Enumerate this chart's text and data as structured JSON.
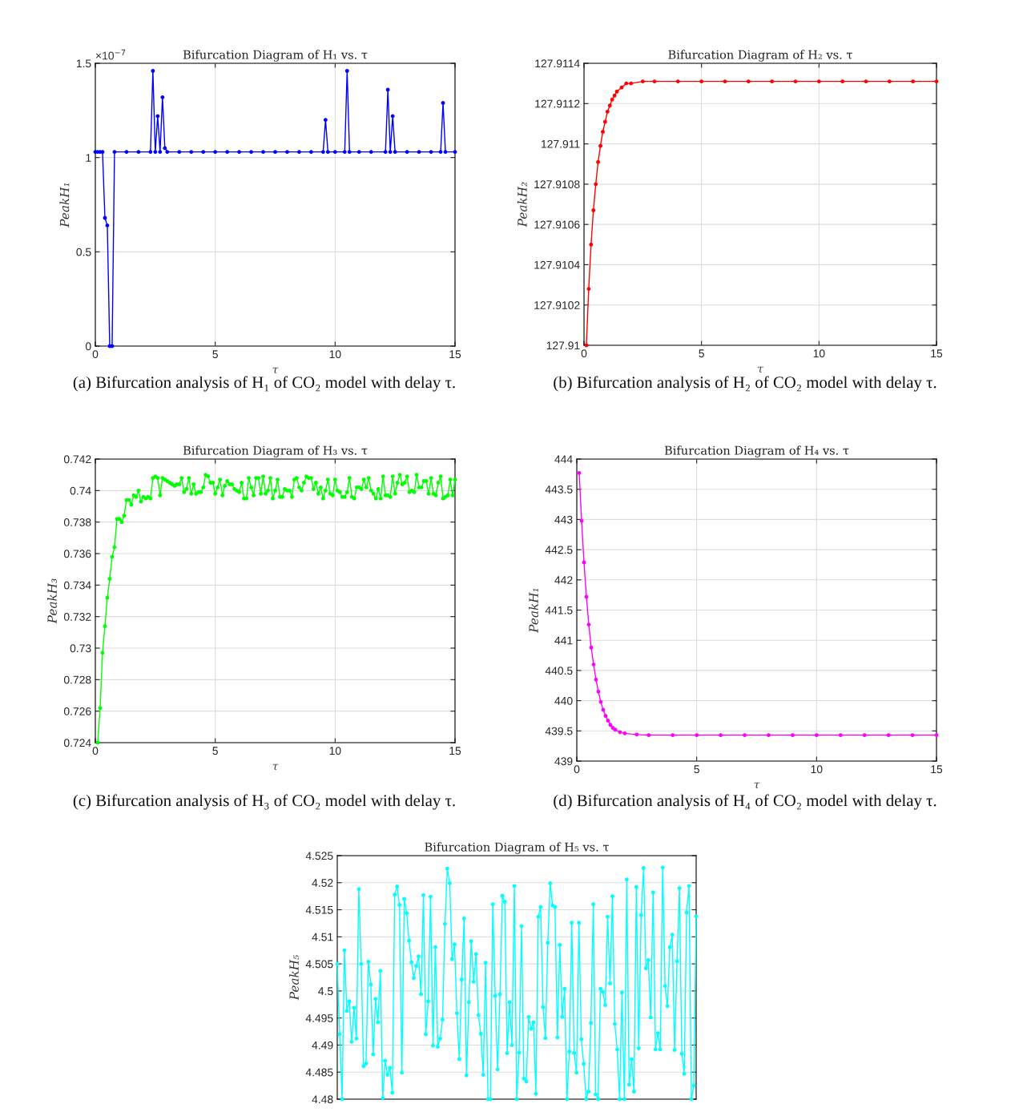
{
  "chart_data": [
    {
      "type": "line",
      "title": "Bifurcation Diagram of H₁ vs. τ",
      "xlabel": "τ",
      "ylabel": "PeakH₁",
      "annotations": [
        "×10$^{−7}$",
        "(a) Bifurcation analysis of H₁ of CO₂ model with delay τ."
      ],
      "x": [
        0,
        0.1,
        0.2,
        0.3,
        0.4,
        0.5,
        0.6,
        0.7,
        0.8,
        1.3,
        1.8,
        2.3,
        2.4,
        2.5,
        2.6,
        2.7,
        2.8,
        2.9,
        3.0,
        3.5,
        4.0,
        4.5,
        5.0,
        5.5,
        6.0,
        6.5,
        7.0,
        7.5,
        8.0,
        8.5,
        9.0,
        9.5,
        9.6,
        9.7,
        10.0,
        10.4,
        10.5,
        10.6,
        11.0,
        11.5,
        12.1,
        12.2,
        12.3,
        12.4,
        12.5,
        13.0,
        13.5,
        14.0,
        14.4,
        14.5,
        14.6,
        15.0
      ],
      "series": [
        {
          "color": "#0000ff",
          "values": [
            1.03,
            1.03,
            1.03,
            1.03,
            0.68,
            0.64,
            0,
            0,
            1.03,
            1.03,
            1.03,
            1.03,
            1.46,
            1.03,
            1.22,
            1.03,
            1.32,
            1.05,
            1.03,
            1.03,
            1.03,
            1.03,
            1.03,
            1.03,
            1.03,
            1.03,
            1.03,
            1.03,
            1.03,
            1.03,
            1.03,
            1.03,
            1.2,
            1.03,
            1.03,
            1.03,
            1.46,
            1.03,
            1.03,
            1.03,
            1.03,
            1.36,
            1.03,
            1.22,
            1.03,
            1.03,
            1.03,
            1.03,
            1.03,
            1.29,
            1.03,
            1.03
          ]
        }
      ],
      "xlim": [
        0,
        15
      ],
      "ylim": [
        0,
        1.5
      ],
      "xticks": [
        0,
        5,
        10,
        15
      ],
      "yticks": [
        0,
        0.5,
        1,
        1.5
      ],
      "grid": true,
      "marker": "circle",
      "line_style": "solid"
    },
    {
      "type": "line",
      "title": "Bifurcation Diagram of H₂ vs. τ",
      "xlabel": "τ",
      "ylabel": "PeakH₂",
      "annotations": [
        "(b) Bifurcation analysis of H₂ of CO₂ model with delay τ."
      ],
      "x": [
        0.1,
        0.2,
        0.3,
        0.4,
        0.5,
        0.6,
        0.7,
        0.8,
        0.9,
        1.0,
        1.1,
        1.2,
        1.3,
        1.4,
        1.6,
        1.8,
        2.0,
        2.5,
        3,
        4,
        5,
        6,
        7,
        8,
        9,
        10,
        11,
        12,
        13,
        14,
        15
      ],
      "series": [
        {
          "color": "#ff0000",
          "values": [
            127.91,
            127.91028,
            127.9105,
            127.91067,
            127.9108,
            127.91091,
            127.91099,
            127.91106,
            127.91111,
            127.91116,
            127.91119,
            127.91122,
            127.91124,
            127.91126,
            127.91128,
            127.9113,
            127.9113,
            127.91131,
            127.91131,
            127.91131,
            127.91131,
            127.91131,
            127.91131,
            127.91131,
            127.91131,
            127.91131,
            127.91131,
            127.91131,
            127.91131,
            127.91131,
            127.91131
          ]
        }
      ],
      "xlim": [
        0,
        15
      ],
      "ylim": [
        127.91,
        127.9114
      ],
      "xticks": [
        0,
        5,
        10,
        15
      ],
      "yticks": [
        127.91,
        127.9102,
        127.9104,
        127.9106,
        127.9108,
        127.911,
        127.9112,
        127.9114
      ],
      "grid": true,
      "marker": "circle",
      "line_style": "solid"
    },
    {
      "type": "line",
      "title": "Bifurcation Diagram of H₃ vs. τ",
      "xlabel": "τ",
      "ylabel": "PeakH₃",
      "annotations": [
        "(c) Bifurcation analysis of H₃ of CO₂ model with delay τ."
      ],
      "x": [
        0.1,
        0.2,
        0.3,
        0.4,
        0.5,
        0.6,
        0.7,
        0.8,
        0.9,
        1.0,
        1.1,
        1.2,
        1.3,
        1.4,
        1.5,
        1.6,
        1.7,
        1.8,
        1.9,
        2.0,
        2.1,
        2.2,
        2.3,
        2.4,
        2.5,
        2.6,
        2.7,
        2.8,
        2.9,
        3.0,
        3.1,
        3.2,
        3.3,
        3.4,
        3.5,
        3.6,
        3.7,
        3.8,
        3.9,
        4.0,
        4.1,
        4.2,
        4.3,
        4.4,
        4.5,
        4.6,
        4.7,
        4.8,
        4.9,
        5.0,
        5.1,
        5.2,
        5.3,
        5.4,
        5.5,
        5.6,
        5.7,
        5.8,
        5.9,
        6.0,
        6.1,
        6.2,
        6.3,
        6.4,
        6.5,
        6.6,
        6.7,
        6.8,
        6.9,
        7.0,
        7.1,
        7.2,
        7.3,
        7.4,
        7.5,
        7.6,
        7.7,
        7.8,
        7.9,
        8.0,
        8.1,
        8.2,
        8.3,
        8.4,
        8.5,
        8.6,
        8.7,
        8.8,
        8.9,
        9.0,
        9.1,
        9.2,
        9.3,
        9.4,
        9.5,
        9.6,
        9.7,
        9.8,
        9.9,
        10.0,
        10.1,
        10.2,
        10.3,
        10.4,
        10.5,
        10.6,
        10.7,
        10.8,
        10.9,
        11.0,
        11.1,
        11.2,
        11.3,
        11.4,
        11.5,
        11.6,
        11.7,
        11.8,
        11.9,
        12.0,
        12.1,
        12.2,
        12.3,
        12.4,
        12.5,
        12.6,
        12.7,
        12.8,
        12.9,
        13.0,
        13.1,
        13.2,
        13.3,
        13.4,
        13.5,
        13.6,
        13.7,
        13.8,
        13.9,
        14.0,
        14.1,
        14.2,
        14.3,
        14.4,
        14.5,
        14.6,
        14.7,
        14.8,
        14.9,
        15.0
      ],
      "series": [
        {
          "color": "#00ff00",
          "values": [
            0.724,
            0.7262,
            0.7297,
            0.7314,
            0.7332,
            0.7344,
            0.7358,
            0.7364,
            0.7382,
            0.7382,
            0.738,
            0.7384,
            0.7394,
            0.7394,
            0.7391,
            0.7397,
            0.7396,
            0.74,
            0.7393,
            0.7396,
            0.7395,
            0.7396,
            0.7395,
            0.7408,
            0.7409,
            0.7408,
            0.7397,
            0.7408,
            0.7407,
            0.7406,
            0.7405,
            0.7404,
            0.7403,
            0.7404,
            0.7404,
            0.7408,
            0.7399,
            0.7401,
            0.7408,
            0.7398,
            0.7404,
            0.7398,
            0.7399,
            0.7399,
            0.7402,
            0.741,
            0.7409,
            0.7405,
            0.7405,
            0.7398,
            0.7402,
            0.7407,
            0.7397,
            0.7403,
            0.7406,
            0.7404,
            0.7404,
            0.7401,
            0.74,
            0.7399,
            0.7405,
            0.7395,
            0.7395,
            0.7408,
            0.7402,
            0.7397,
            0.7408,
            0.7408,
            0.7398,
            0.7409,
            0.7398,
            0.74,
            0.7408,
            0.7395,
            0.74,
            0.7407,
            0.7396,
            0.7396,
            0.7401,
            0.74,
            0.74,
            0.7396,
            0.7407,
            0.7408,
            0.7402,
            0.74,
            0.7405,
            0.7409,
            0.7408,
            0.7408,
            0.7401,
            0.7405,
            0.7398,
            0.7402,
            0.7395,
            0.74,
            0.7407,
            0.7398,
            0.7397,
            0.7407,
            0.74,
            0.7399,
            0.7396,
            0.7396,
            0.7399,
            0.7408,
            0.7396,
            0.7395,
            0.7402,
            0.7402,
            0.7401,
            0.7407,
            0.7402,
            0.7408,
            0.74,
            0.7398,
            0.7395,
            0.7401,
            0.7395,
            0.7409,
            0.7397,
            0.7397,
            0.7396,
            0.7409,
            0.7398,
            0.7405,
            0.741,
            0.7404,
            0.7405,
            0.7409,
            0.7399,
            0.74,
            0.7399,
            0.741,
            0.7402,
            0.7402,
            0.7406,
            0.7406,
            0.7398,
            0.7408,
            0.7398,
            0.7397,
            0.7405,
            0.7409,
            0.7395,
            0.7396,
            0.7397,
            0.7407,
            0.7397,
            0.7407
          ]
        }
      ],
      "xlim": [
        0,
        15
      ],
      "ylim": [
        0.724,
        0.742
      ],
      "xticks": [
        0,
        5,
        10,
        15
      ],
      "yticks": [
        0.724,
        0.726,
        0.728,
        0.73,
        0.732,
        0.734,
        0.736,
        0.738,
        0.74,
        0.742
      ],
      "grid": true,
      "marker": "circle",
      "line_style": "solid"
    },
    {
      "type": "line",
      "title": "Bifurcation Diagram of H₄ vs. τ",
      "xlabel": "τ",
      "ylabel": "PeakH₁",
      "annotations": [
        "(d) Bifurcation analysis of H₄ of CO₂ model with delay τ."
      ],
      "x": [
        0.1,
        0.2,
        0.3,
        0.4,
        0.5,
        0.6,
        0.7,
        0.8,
        0.9,
        1.0,
        1.1,
        1.2,
        1.3,
        1.4,
        1.5,
        1.6,
        1.8,
        2.0,
        2.5,
        3,
        4,
        5,
        6,
        7,
        8,
        9,
        10,
        11,
        12,
        13,
        14,
        15
      ],
      "series": [
        {
          "color": "#ff00ff",
          "values": [
            443.77,
            442.98,
            442.29,
            441.72,
            441.26,
            440.88,
            440.6,
            440.35,
            440.15,
            439.98,
            439.85,
            439.75,
            439.67,
            439.6,
            439.55,
            439.52,
            439.48,
            439.46,
            439.44,
            439.43,
            439.43,
            439.43,
            439.43,
            439.43,
            439.43,
            439.43,
            439.43,
            439.43,
            439.43,
            439.43,
            439.43,
            439.43
          ]
        }
      ],
      "xlim": [
        0,
        15
      ],
      "ylim": [
        439,
        444
      ],
      "xticks": [
        0,
        5,
        10,
        15
      ],
      "yticks": [
        439,
        439.5,
        440,
        440.5,
        441,
        441.5,
        442,
        442.5,
        443,
        443.5,
        444
      ],
      "grid": true,
      "marker": "circle",
      "line_style": "solid"
    },
    {
      "type": "line",
      "title": "Bifurcation Diagram of H₅ vs. τ",
      "ylabel": "PeakH₅",
      "categories": [
        null,
        null,
        null,
        null,
        null,
        null,
        null,
        null,
        null,
        null,
        null,
        null,
        null,
        null,
        null,
        null,
        null,
        null,
        null,
        null,
        null,
        null,
        null,
        null,
        null,
        null,
        null,
        null,
        null,
        null,
        null,
        null,
        null,
        null,
        null,
        null,
        null,
        null,
        null,
        null,
        null,
        null,
        null,
        null,
        null,
        null,
        null,
        null,
        null,
        null,
        null,
        null,
        null,
        null,
        null,
        null,
        null,
        null,
        null,
        null,
        null,
        null,
        null,
        null,
        null,
        null,
        null,
        null,
        null,
        null,
        null,
        null,
        null,
        null,
        null,
        null,
        null,
        null,
        null,
        null,
        null,
        null,
        null,
        null,
        null,
        null,
        null,
        null,
        null,
        null,
        null,
        null,
        null,
        null,
        null,
        null,
        null,
        null,
        null,
        null,
        null,
        null,
        null,
        null,
        null,
        null,
        null,
        null,
        null,
        null,
        null,
        null,
        null,
        null,
        null,
        null,
        null,
        null,
        null,
        null,
        null,
        null,
        null,
        null,
        null,
        null,
        null,
        null,
        null,
        null,
        null,
        null,
        null,
        null,
        null,
        null,
        null,
        null,
        null,
        null,
        null,
        null,
        null,
        null,
        null,
        null,
        null,
        null,
        null,
        null,
        null
      ],
      "series": [
        {
          "color": "#00ffff",
          "values": [
            4.505,
            4.492,
            4.48,
            4.5075,
            4.4963,
            4.4981,
            4.4906,
            4.4969,
            4.4912,
            4.5188,
            4.505,
            4.4861,
            4.4866,
            4.5054,
            4.5012,
            4.4883,
            4.4985,
            4.4942,
            4.5037,
            4.4802,
            4.4871,
            4.4845,
            4.4858,
            4.4812,
            4.5178,
            4.5193,
            4.5159,
            4.4849,
            4.517,
            4.5144,
            4.5093,
            4.5053,
            4.5024,
            4.5046,
            4.5064,
            4.4994,
            4.5177,
            4.492,
            4.4981,
            4.5174,
            4.4899,
            4.5081,
            4.4897,
            4.4912,
            4.4947,
            4.5124,
            4.5226,
            4.5199,
            4.5059,
            4.5086,
            4.4959,
            4.4874,
            4.5021,
            4.5134,
            4.4844,
            4.4979,
            4.5092,
            4.5017,
            4.5068,
            4.4955,
            4.4921,
            4.4845,
            4.5052,
            4.48,
            4.48,
            4.516,
            4.4991,
            4.4855,
            4.4994,
            4.5176,
            4.5165,
            4.4885,
            4.4979,
            4.49,
            4.5194,
            4.48,
            4.4886,
            4.512,
            4.4838,
            4.4833,
            4.4952,
            4.493,
            4.4942,
            4.481,
            4.5137,
            4.5155,
            4.497,
            4.4913,
            4.5089,
            4.5199,
            4.5158,
            4.5155,
            4.4914,
            4.5085,
            4.4952,
            4.5004,
            4.48,
            4.4888,
            4.5126,
            4.4885,
            4.4849,
            4.5126,
            4.4911,
            4.4865,
            4.48,
            4.4814,
            4.4941,
            4.516,
            4.4809,
            4.48,
            4.5004,
            4.4998,
            4.4974,
            4.5137,
            4.5014,
            4.5175,
            4.4939,
            4.4892,
            4.48,
            4.4997,
            4.48,
            4.5206,
            4.4827,
            4.4874,
            4.4814,
            4.5192,
            4.4894,
            4.514,
            4.5227,
            4.5042,
            4.5057,
            4.4951,
            4.5182,
            4.4892,
            4.4922,
            4.4892,
            4.5228,
            4.5009,
            4.4972,
            4.5081,
            4.5104,
            4.4891,
            4.5055,
            4.519,
            4.4884,
            4.4847,
            4.5145,
            4.5194,
            4.48,
            4.4825,
            4.5138
          ]
        }
      ],
      "ylim": [
        4.48,
        4.525
      ],
      "yticks": [
        4.48,
        4.485,
        4.49,
        4.495,
        4.5,
        4.505,
        4.51,
        4.515,
        4.52,
        4.525
      ],
      "grid": "y",
      "marker": "circle",
      "line_style": "solid"
    }
  ]
}
